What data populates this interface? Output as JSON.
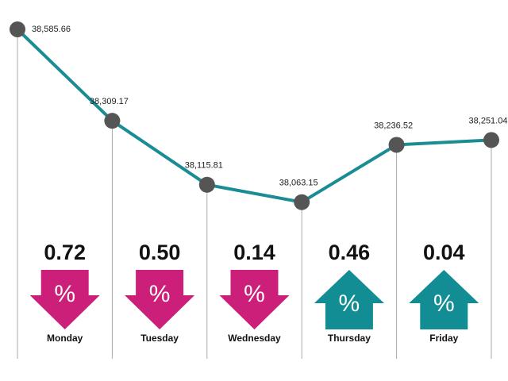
{
  "chart_data": {
    "type": "line",
    "categories": [
      null,
      null,
      null,
      null,
      null,
      null
    ],
    "values": [
      38585.66,
      38309.17,
      38115.81,
      38063.15,
      38236.52,
      38251.04
    ],
    "value_labels": [
      "38,585.66",
      "38,309.17",
      "38,115.81",
      "38,063.15",
      "38,236.52",
      "38,251.04"
    ],
    "color": "#1a8c94",
    "marker_color": "#555555",
    "ylim": [
      38000,
      38600
    ],
    "changes": {
      "categories": [
        "Monday",
        "Tuesday",
        "Wednesday",
        "Thursday",
        "Friday"
      ],
      "values": [
        -0.72,
        -0.5,
        -0.14,
        0.46,
        0.04
      ],
      "value_labels": [
        "0.72",
        "0.50",
        "0.14",
        "0.46",
        "0.04"
      ],
      "symbol": "%",
      "down_color": "#cc1f7a",
      "up_color": "#128d93"
    }
  }
}
